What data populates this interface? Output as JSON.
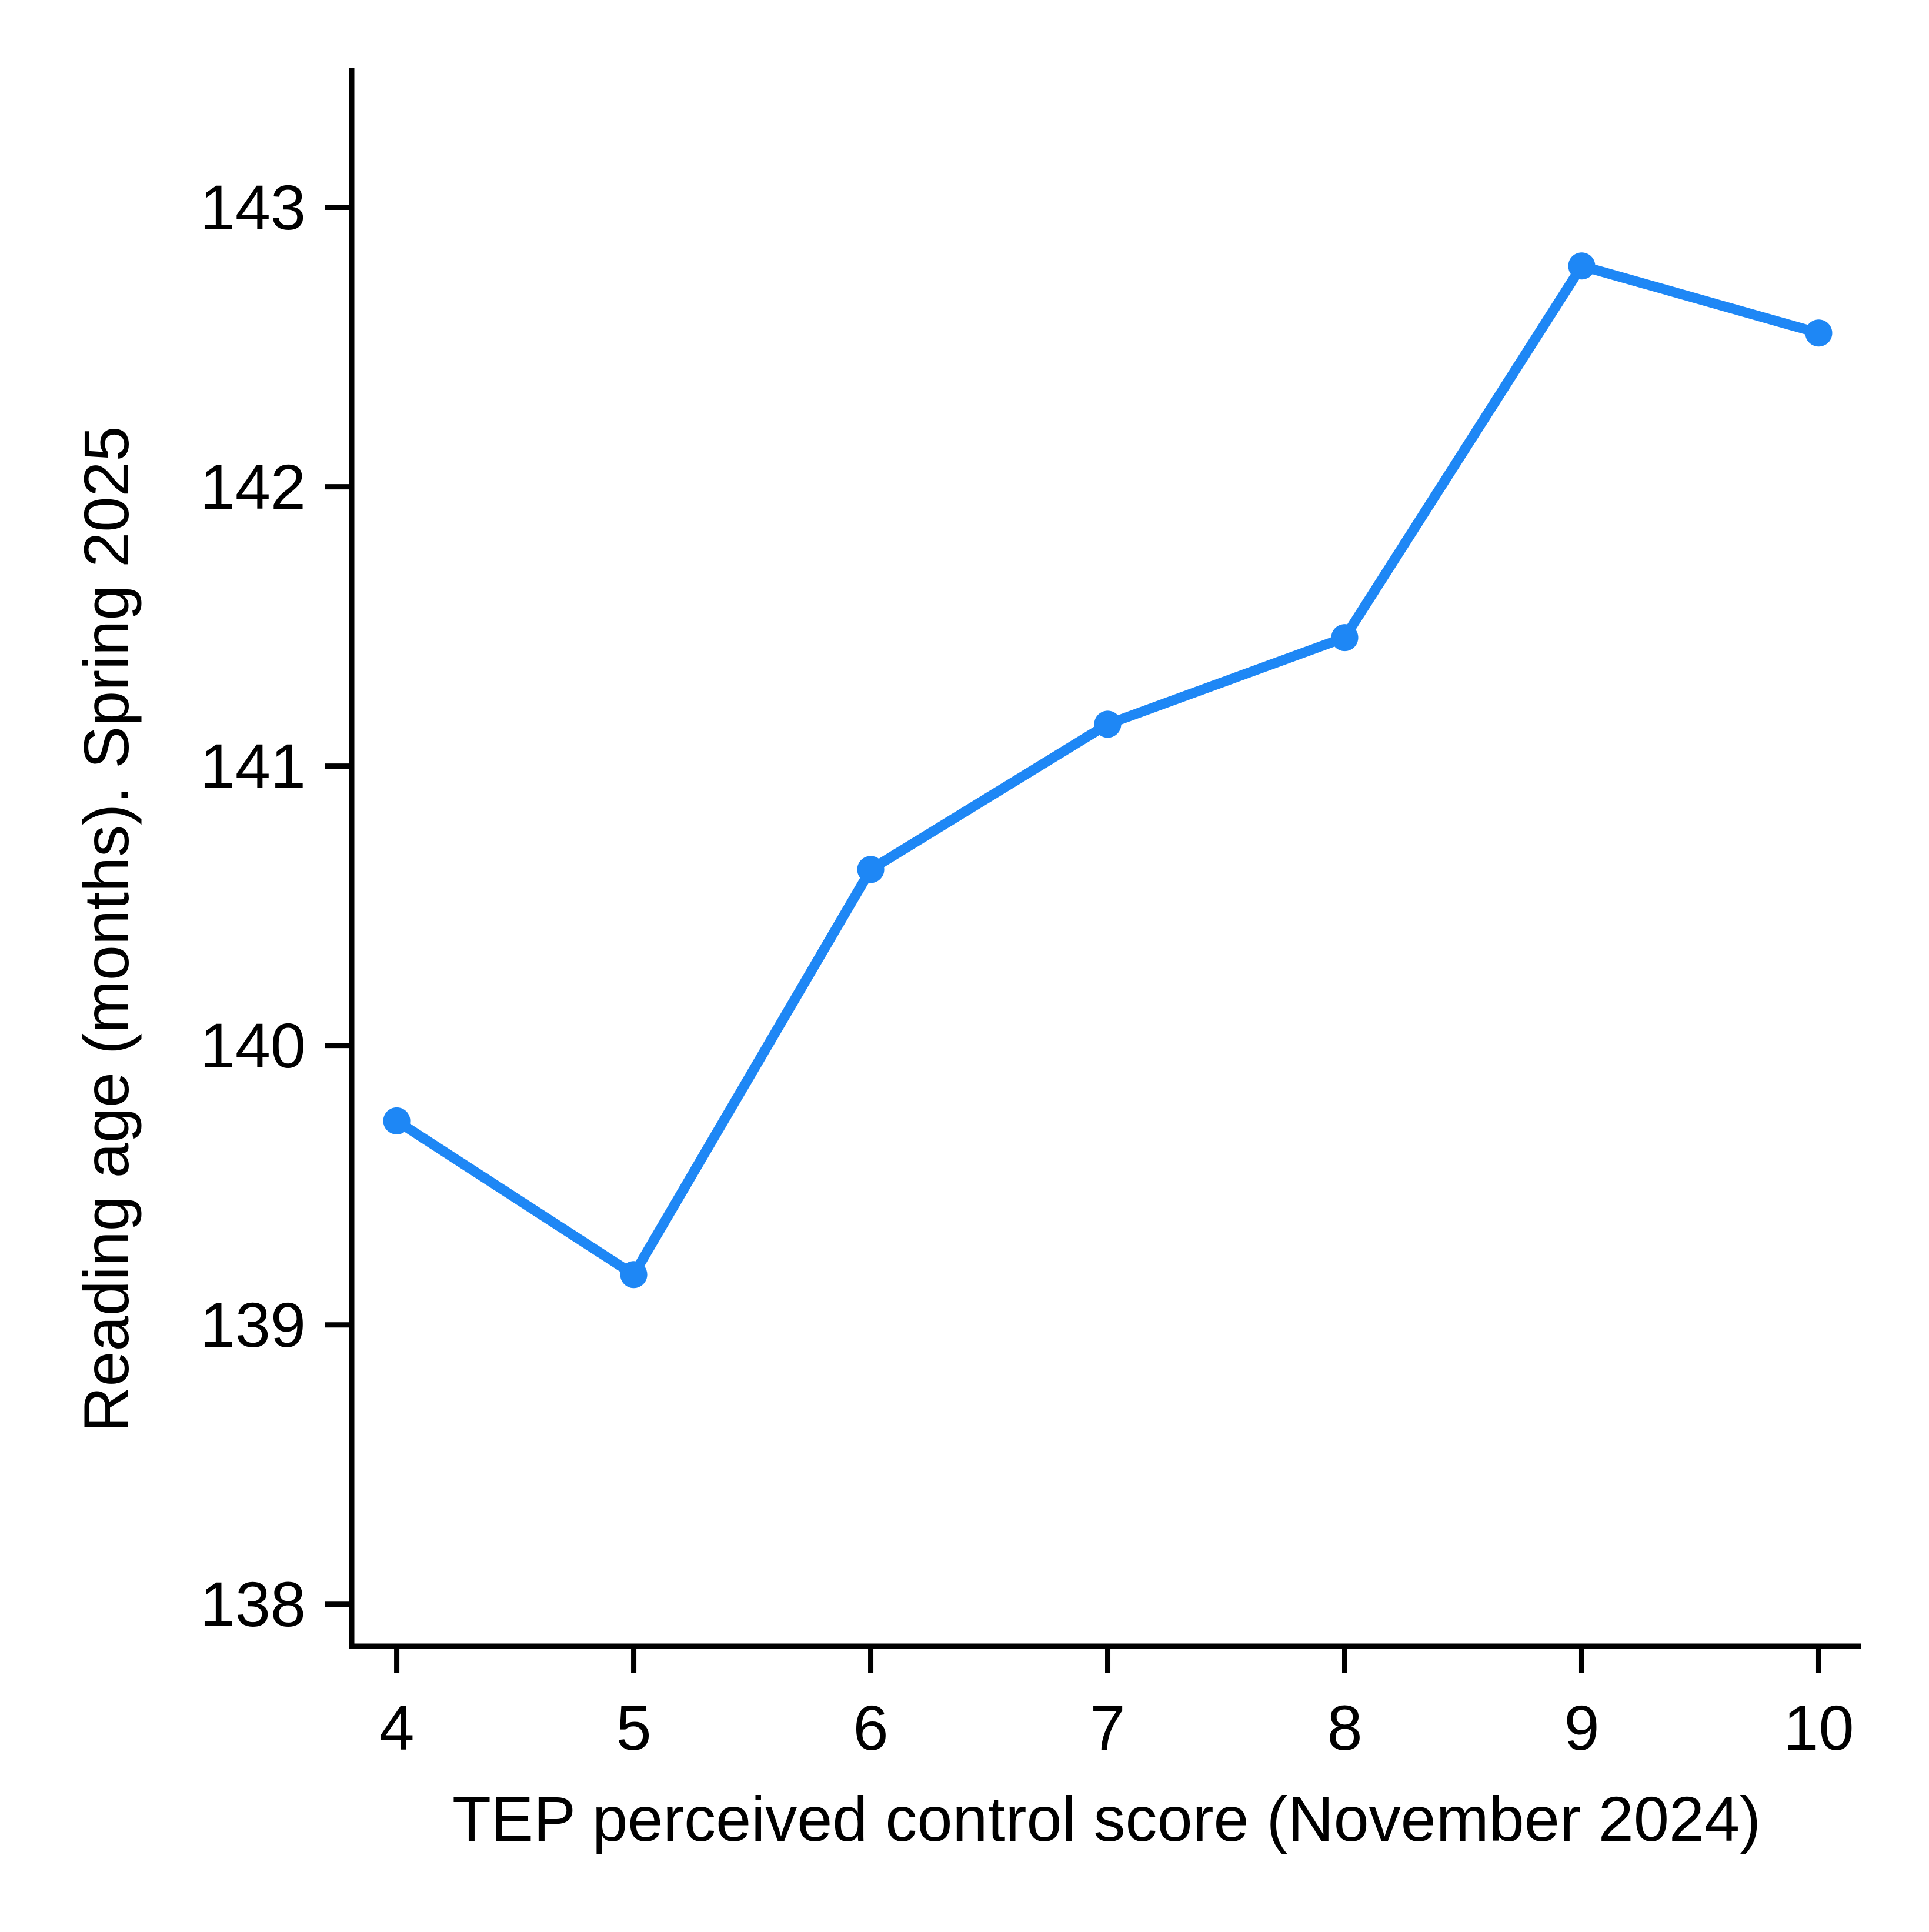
{
  "chart_data": {
    "type": "line",
    "title": "",
    "xlabel": "TEP perceived control score (November 2024)",
    "ylabel": "Reading age (months). Spring 2025",
    "series": [
      {
        "name": "Reading age (months), Spring 2025",
        "x": [
          4,
          5,
          6,
          7,
          8,
          9,
          10
        ],
        "y": [
          139.73,
          139.18,
          140.63,
          141.15,
          141.46,
          142.79,
          142.55
        ]
      }
    ],
    "x_ticks": [
      4,
      5,
      6,
      7,
      8,
      9,
      10
    ],
    "y_ticks": [
      138,
      139,
      140,
      141,
      142,
      143
    ],
    "xlim": [
      3.81,
      10.18
    ],
    "ylim": [
      137.85,
      143.5
    ],
    "grid": false,
    "legend": false,
    "line_color": "#1E87F5",
    "marker_color": "#1E87F5",
    "axis_color": "#000000",
    "background_color": "#FFFFFF"
  }
}
